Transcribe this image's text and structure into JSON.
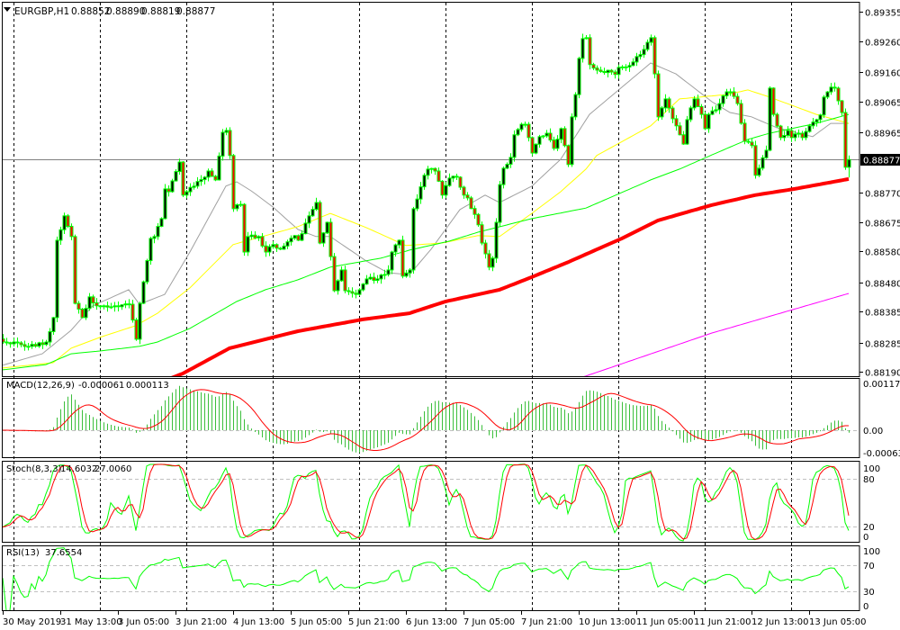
{
  "header": {
    "symbol_timeframe": "EURGBP,H1",
    "open": "0.88852",
    "high": "0.88890",
    "low": "0.88819",
    "close": "0.88877",
    "menu_icon": "triangle-down-icon"
  },
  "indicators": {
    "macd": {
      "label": "MACD(12,26,9)",
      "main": "-0.000061",
      "signal": "0.000113",
      "scale": [
        "0.001179",
        "0.00",
        "-0.000637"
      ]
    },
    "stoch": {
      "label": "Stoch(8,3,3)",
      "main": "14.6032",
      "signal": "27.0060",
      "scale": [
        "100",
        "80",
        "20",
        "0"
      ]
    },
    "rsi": {
      "label": "RSI(13)",
      "value": "37.6554",
      "scale": [
        "100",
        "70",
        "30",
        "0"
      ]
    }
  },
  "chart_data": {
    "type": "candlestick",
    "symbol": "EURGBP",
    "timeframe": "H1",
    "ylim": [
      0.88177,
      0.89387
    ],
    "price_ticks": [
      "0.89355",
      "0.89260",
      "0.89160",
      "0.89065",
      "0.88965",
      "0.88770",
      "0.88675",
      "0.88580",
      "0.88480",
      "0.88385",
      "0.88285",
      "0.88190"
    ],
    "current_price": "0.88877",
    "time_labels": [
      "30 May 2019",
      "31 May 13:00",
      "3 Jun 05:00",
      "3 Jun 21:00",
      "4 Jun 13:00",
      "5 Jun 05:00",
      "5 Jun 21:00",
      "6 Jun 13:00",
      "7 Jun 05:00",
      "7 Jun 21:00",
      "10 Jun 13:00",
      "11 Jun 05:00",
      "11 Jun 21:00",
      "12 Jun 13:00",
      "13 Jun 05:00"
    ],
    "period_separators": "daily",
    "colors": {
      "candle_outline": "#00ff00",
      "bull_body": "#000000",
      "bear_body": "#ff0000",
      "ma_gray": "#a0a0a0",
      "ma_yellow": "#ffff00",
      "ma_green": "#00ff00",
      "ma_red": "#ff0000",
      "ma_magenta": "#ff00ff",
      "macd_histogram": "#3cbf3c",
      "signal": "#ff0000",
      "level_line": "#c0c0c0",
      "separator": "#000000"
    },
    "close": [
      [
        "30 May 21:00",
        0.88287
      ],
      [
        "31 May 04:00",
        0.88273
      ],
      [
        "31 May 09:00",
        0.88287
      ],
      [
        "31 May 11:00",
        0.88366
      ],
      [
        "31 May 12:00",
        0.88616
      ],
      [
        "31 May 14:00",
        0.88695
      ],
      [
        "31 May 16:00",
        0.88628
      ],
      [
        "31 May 17:00",
        0.88412
      ],
      [
        "31 May 19:00",
        0.88366
      ],
      [
        "31 May 21:00",
        0.88433
      ],
      [
        "31 May 23:00",
        0.88404
      ],
      [
        "3 Jun 01:00",
        0.88404
      ],
      [
        "3 Jun 04:00",
        0.88404
      ],
      [
        "3 Jun 08:00",
        0.88409
      ],
      [
        "3 Jun 10:00",
        0.88296
      ],
      [
        "3 Jun 11:00",
        0.88412
      ],
      [
        "3 Jun 14:00",
        0.88622
      ],
      [
        "3 Jun 15:00",
        0.88628
      ],
      [
        "3 Jun 17:00",
        0.88686
      ],
      [
        "3 Jun 18:00",
        0.88782
      ],
      [
        "3 Jun 19:00",
        0.88773
      ],
      [
        "3 Jun 22:00",
        0.88869
      ],
      [
        "3 Jun 23:00",
        0.88762
      ],
      [
        "4 Jun 02:00",
        0.88791
      ],
      [
        "4 Jun 05:00",
        0.8882
      ],
      [
        "4 Jun 06:00",
        0.8884
      ],
      [
        "4 Jun 08:00",
        0.88811
      ],
      [
        "4 Jun 10:00",
        0.88965
      ],
      [
        "4 Jun 11:00",
        0.88971
      ],
      [
        "4 Jun 12:00",
        0.8889
      ],
      [
        "4 Jun 13:00",
        0.88718
      ],
      [
        "4 Jun 15:00",
        0.88732
      ],
      [
        "4 Jun 16:00",
        0.88578
      ],
      [
        "4 Jun 17:00",
        0.88628
      ],
      [
        "4 Jun 20:00",
        0.88628
      ],
      [
        "4 Jun 22:00",
        0.88578
      ],
      [
        "5 Jun 00:00",
        0.88602
      ],
      [
        "5 Jun 02:00",
        0.88587
      ],
      [
        "5 Jun 06:00",
        0.88631
      ],
      [
        "5 Jun 07:00",
        0.88616
      ],
      [
        "5 Jun 10:00",
        0.88695
      ],
      [
        "5 Jun 12:00",
        0.88738
      ],
      [
        "5 Jun 13:00",
        0.88607
      ],
      [
        "5 Jun 15:00",
        0.88674
      ],
      [
        "5 Jun 17:00",
        0.88453
      ],
      [
        "5 Jun 19:00",
        0.8852
      ],
      [
        "5 Jun 20:00",
        0.88453
      ],
      [
        "5 Jun 23:00",
        0.88441
      ],
      [
        "6 Jun 02:00",
        0.88491
      ],
      [
        "6 Jun 05:00",
        0.88491
      ],
      [
        "6 Jun 08:00",
        0.8852
      ],
      [
        "6 Jun 09:00",
        0.88578
      ],
      [
        "6 Jun 11:00",
        0.88616
      ],
      [
        "6 Jun 12:00",
        0.885
      ],
      [
        "6 Jun 14:00",
        0.8852
      ],
      [
        "6 Jun 15:00",
        0.88718
      ],
      [
        "6 Jun 18:00",
        0.88826
      ],
      [
        "6 Jun 19:00",
        0.88846
      ],
      [
        "6 Jun 21:00",
        0.8884
      ],
      [
        "6 Jun 23:00",
        0.88762
      ],
      [
        "7 Jun 01:00",
        0.88817
      ],
      [
        "7 Jun 03:00",
        0.8882
      ],
      [
        "7 Jun 05:00",
        0.88762
      ],
      [
        "7 Jun 06:00",
        0.88753
      ],
      [
        "7 Jun 09:00",
        0.88666
      ],
      [
        "7 Jun 10:00",
        0.88607
      ],
      [
        "7 Jun 12:00",
        0.88529
      ],
      [
        "7 Jun 13:00",
        0.88558
      ],
      [
        "7 Jun 14:00",
        0.88674
      ],
      [
        "7 Jun 15:00",
        0.88796
      ],
      [
        "7 Jun 16:00",
        0.88849
      ],
      [
        "7 Jun 18:00",
        0.88884
      ],
      [
        "7 Jun 19:00",
        0.88957
      ],
      [
        "7 Jun 21:00",
        0.88991
      ],
      [
        "7 Jun 22:00",
        0.88991
      ],
      [
        "7 Jun 23:00",
        0.88948
      ],
      [
        "10 Jun 00:00",
        0.88898
      ],
      [
        "10 Jun 02:00",
        0.88951
      ],
      [
        "10 Jun 04:00",
        0.88962
      ],
      [
        "10 Jun 06:00",
        0.88913
      ],
      [
        "10 Jun 08:00",
        0.88977
      ],
      [
        "10 Jun 10:00",
        0.88861
      ],
      [
        "10 Jun 11:00",
        0.89015
      ],
      [
        "10 Jun 12:00",
        0.89087
      ],
      [
        "10 Jun 13:00",
        0.89204
      ],
      [
        "10 Jun 14:00",
        0.89268
      ],
      [
        "10 Jun 15:00",
        0.89271
      ],
      [
        "10 Jun 16:00",
        0.89184
      ],
      [
        "10 Jun 18:00",
        0.89166
      ],
      [
        "10 Jun 22:00",
        0.8916
      ],
      [
        "10 Jun 23:00",
        0.89152
      ],
      [
        "11 Jun 00:00",
        0.89175
      ],
      [
        "11 Jun 03:00",
        0.89181
      ],
      [
        "11 Jun 05:00",
        0.8921
      ],
      [
        "11 Jun 07:00",
        0.89233
      ],
      [
        "11 Jun 08:00",
        0.89256
      ],
      [
        "11 Jun 09:00",
        0.89271
      ],
      [
        "11 Jun 10:00",
        0.89154
      ],
      [
        "11 Jun 11:00",
        0.89015
      ],
      [
        "11 Jun 12:00",
        0.89044
      ],
      [
        "11 Jun 13:00",
        0.89073
      ],
      [
        "11 Jun 15:00",
        0.89009
      ],
      [
        "11 Jun 16:00",
        0.88986
      ],
      [
        "11 Jun 17:00",
        0.88957
      ],
      [
        "11 Jun 18:00",
        0.88927
      ],
      [
        "11 Jun 19:00",
        0.89006
      ],
      [
        "11 Jun 20:00",
        0.89044
      ],
      [
        "11 Jun 21:00",
        0.89073
      ],
      [
        "11 Jun 23:00",
        0.89023
      ],
      [
        "12 Jun 00:00",
        0.88977
      ],
      [
        "12 Jun 01:00",
        0.89023
      ],
      [
        "12 Jun 03:00",
        0.89038
      ],
      [
        "12 Jun 04:00",
        0.89058
      ],
      [
        "12 Jun 06:00",
        0.89096
      ],
      [
        "12 Jun 07:00",
        0.89096
      ],
      [
        "12 Jun 09:00",
        0.89058
      ],
      [
        "12 Jun 11:00",
        0.88936
      ],
      [
        "12 Jun 13:00",
        0.88922
      ],
      [
        "12 Jun 14:00",
        0.88826
      ],
      [
        "12 Jun 15:00",
        0.88849
      ],
      [
        "12 Jun 17:00",
        0.88907
      ],
      [
        "12 Jun 18:00",
        0.89108
      ],
      [
        "12 Jun 19:00",
        0.89023
      ],
      [
        "12 Jun 21:00",
        0.88948
      ],
      [
        "12 Jun 23:00",
        0.88971
      ],
      [
        "13 Jun 00:00",
        0.88948
      ],
      [
        "13 Jun 02:00",
        0.88962
      ],
      [
        "13 Jun 03:00",
        0.88948
      ],
      [
        "13 Jun 05:00",
        0.88986
      ],
      [
        "13 Jun 07:00",
        0.89006
      ],
      [
        "13 Jun 08:00",
        0.89021
      ],
      [
        "13 Jun 09:00",
        0.89079
      ],
      [
        "13 Jun 11:00",
        0.89111
      ],
      [
        "13 Jun 12:00",
        0.89108
      ],
      [
        "13 Jun 13:00",
        0.89067
      ],
      [
        "13 Jun 14:00",
        0.89029
      ],
      [
        "13 Jun 15:00",
        0.88852
      ],
      [
        "13 Jun 16:00",
        0.88877
      ]
    ],
    "moving_averages": [
      {
        "color": "ma_gray",
        "points": [
          [
            "30 May 21:00",
            0.88212
          ],
          [
            "31 May 08:00",
            0.88249
          ],
          [
            "31 May 16:00",
            0.88325
          ],
          [
            "31 May 22:00",
            0.88404
          ],
          [
            "3 Jun 08:00",
            0.88456
          ],
          [
            "3 Jun 11:00",
            0.88409
          ],
          [
            "3 Jun 18:00",
            0.88441
          ],
          [
            "4 Jun 01:00",
            0.88578
          ],
          [
            "4 Jun 11:00",
            0.88791
          ],
          [
            "4 Jun 14:00",
            0.88805
          ],
          [
            "4 Jun 18:00",
            0.88776
          ],
          [
            "5 Jun 00:00",
            0.88724
          ],
          [
            "5 Jun 07:00",
            0.88651
          ],
          [
            "5 Jun 12:00",
            0.88628
          ],
          [
            "5 Jun 16:00",
            0.88628
          ],
          [
            "6 Jun 02:00",
            0.88549
          ],
          [
            "6 Jun 08:00",
            0.88511
          ],
          [
            "6 Jun 14:00",
            0.88505
          ],
          [
            "6 Jun 20:00",
            0.88587
          ],
          [
            "7 Jun 04:00",
            0.88715
          ],
          [
            "7 Jun 11:00",
            0.88762
          ],
          [
            "7 Jun 15:00",
            0.88738
          ],
          [
            "10 Jun 00:00",
            0.88791
          ],
          [
            "10 Jun 08:00",
            0.88878
          ],
          [
            "10 Jun 16:00",
            0.89023
          ],
          [
            "11 Jun 09:00",
            0.89189
          ],
          [
            "11 Jun 16:00",
            0.89154
          ],
          [
            "12 Jun 02:00",
            0.89064
          ],
          [
            "12 Jun 07:00",
            0.89029
          ],
          [
            "12 Jun 13:00",
            0.89015
          ],
          [
            "12 Jun 20:00",
            0.8898
          ],
          [
            "13 Jun 06:00",
            0.88951
          ],
          [
            "13 Jun 11:00",
            0.88994
          ],
          [
            "13 Jun 16:00",
            0.88994
          ]
        ]
      },
      {
        "color": "ma_yellow",
        "points": [
          [
            "30 May 21:00",
            0.88203
          ],
          [
            "31 May 11:00",
            0.8822
          ],
          [
            "31 May 16:00",
            0.88267
          ],
          [
            "3 Jun 00:00",
            0.88302
          ],
          [
            "3 Jun 10:00",
            0.8834
          ],
          [
            "3 Jun 16:00",
            0.8838
          ],
          [
            "4 Jun 01:00",
            0.88462
          ],
          [
            "4 Jun 13:00",
            0.88602
          ],
          [
            "5 Jun 07:00",
            0.8866
          ],
          [
            "5 Jun 16:00",
            0.88703
          ],
          [
            "6 Jun 02:00",
            0.88657
          ],
          [
            "6 Jun 13:00",
            0.88599
          ],
          [
            "6 Jun 23:00",
            0.88607
          ],
          [
            "7 Jun 09:00",
            0.88631
          ],
          [
            "7 Jun 15:00",
            0.88628
          ],
          [
            "10 Jun 00:00",
            0.88703
          ],
          [
            "10 Jun 08:00",
            0.88773
          ],
          [
            "10 Jun 15:00",
            0.88846
          ],
          [
            "10 Jun 18:00",
            0.8889
          ],
          [
            "11 Jun 09:00",
            0.88986
          ],
          [
            "11 Jun 17:00",
            0.89073
          ],
          [
            "12 Jun 06:00",
            0.89087
          ],
          [
            "12 Jun 12:00",
            0.89102
          ],
          [
            "12 Jun 18:00",
            0.89079
          ],
          [
            "13 Jun 07:00",
            0.89023
          ],
          [
            "13 Jun 16:00",
            0.88994
          ]
        ]
      },
      {
        "color": "ma_green",
        "points": [
          [
            "30 May 21:00",
            0.88197
          ],
          [
            "31 May 09:00",
            0.88214
          ],
          [
            "31 May 16:00",
            0.88249
          ],
          [
            "3 Jun 00:00",
            0.88258
          ],
          [
            "3 Jun 11:00",
            0.88273
          ],
          [
            "3 Jun 16:00",
            0.88287
          ],
          [
            "4 Jun 01:00",
            0.88331
          ],
          [
            "4 Jun 14:00",
            0.88418
          ],
          [
            "4 Jun 22:00",
            0.88456
          ],
          [
            "5 Jun 07:00",
            0.88488
          ],
          [
            "5 Jun 16:00",
            0.88529
          ],
          [
            "6 Jun 06:00",
            0.88558
          ],
          [
            "6 Jun 14:00",
            0.88584
          ],
          [
            "7 Jun 01:00",
            0.88613
          ],
          [
            "7 Jun 09:00",
            0.88642
          ],
          [
            "10 Jun 00:00",
            0.88686
          ],
          [
            "10 Jun 15:00",
            0.8872
          ],
          [
            "11 Jun 09:00",
            0.88811
          ],
          [
            "11 Jun 17:00",
            0.88846
          ],
          [
            "12 Jun 02:00",
            0.88892
          ],
          [
            "12 Jun 12:00",
            0.88942
          ],
          [
            "12 Jun 18:00",
            0.88962
          ],
          [
            "13 Jun 07:00",
            0.88994
          ],
          [
            "13 Jun 16:00",
            0.89023
          ]
        ]
      },
      {
        "color": "ma_red",
        "points": [
          [
            "3 Jun 13:00",
            0.8814
          ],
          [
            "3 Jun 23:00",
            0.88185
          ],
          [
            "4 Jun 12:00",
            0.88267
          ],
          [
            "5 Jun 00:00",
            0.88302
          ],
          [
            "5 Jun 07:00",
            0.88322
          ],
          [
            "6 Jun 01:00",
            0.8836
          ],
          [
            "6 Jun 14:00",
            0.8838
          ],
          [
            "7 Jun 00:00",
            0.88418
          ],
          [
            "7 Jun 15:00",
            0.88456
          ],
          [
            "10 Jun 00:00",
            0.88497
          ],
          [
            "10 Jun 10:00",
            0.88545
          ],
          [
            "11 Jun 01:00",
            0.88622
          ],
          [
            "11 Jun 11:00",
            0.8868
          ],
          [
            "12 Jun 02:00",
            0.8873
          ],
          [
            "12 Jun 14:00",
            0.88762
          ],
          [
            "13 Jun 01:00",
            0.88782
          ],
          [
            "13 Jun 16:00",
            0.88814
          ]
        ]
      },
      {
        "color": "ma_magenta",
        "points": [
          [
            "10 Jun 03:00",
            0.8814
          ],
          [
            "10 Jun 15:00",
            0.88177
          ],
          [
            "12 Jun 02:00",
            0.88316
          ],
          [
            "13 Jun 16:00",
            0.88444
          ]
        ]
      }
    ]
  }
}
